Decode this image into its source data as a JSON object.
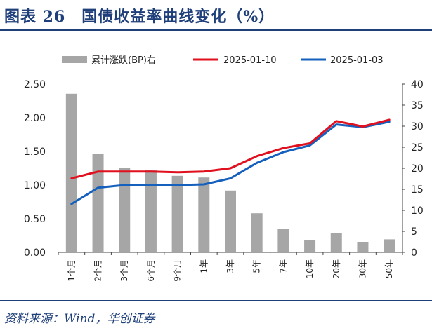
{
  "title": "图表 26　国债收益率曲线变化（%）",
  "source": "资料来源：Wind，华创证券",
  "colors": {
    "bar": "#a6a6a6",
    "series_a": "#e0101e",
    "series_b": "#1560bd",
    "text": "#222222",
    "title": "#1f3f7a"
  },
  "chart_data": {
    "type": "bar+line",
    "categories": [
      "1个月",
      "2个月",
      "3个月",
      "6个月",
      "9个月",
      "1年",
      "3年",
      "5年",
      "7年",
      "10年",
      "20年",
      "30年",
      "50年"
    ],
    "bar_series": {
      "name": "累计涨跌(BP)右",
      "axis": "right",
      "values": [
        37.7,
        23.4,
        20.0,
        19.5,
        18.2,
        17.8,
        14.7,
        9.3,
        5.6,
        2.9,
        4.6,
        2.5,
        3.1
      ]
    },
    "series": [
      {
        "name": "2025-01-10",
        "axis": "left",
        "values": [
          1.1,
          1.2,
          1.2,
          1.2,
          1.19,
          1.2,
          1.25,
          1.43,
          1.55,
          1.62,
          1.95,
          1.87,
          1.97
        ]
      },
      {
        "name": "2025-01-03",
        "axis": "left",
        "values": [
          0.72,
          0.96,
          1.0,
          1.0,
          1.0,
          1.01,
          1.1,
          1.33,
          1.49,
          1.59,
          1.9,
          1.86,
          1.94
        ]
      }
    ],
    "left_axis": {
      "min": 0,
      "max": 2.5,
      "ticks": [
        "0.00",
        "0.50",
        "1.00",
        "1.50",
        "2.00",
        "2.50"
      ]
    },
    "right_axis": {
      "min": 0,
      "max": 40,
      "ticks": [
        "0",
        "5",
        "10",
        "15",
        "20",
        "25",
        "30",
        "35",
        "40"
      ]
    },
    "legend_position": "top",
    "grid": false
  }
}
